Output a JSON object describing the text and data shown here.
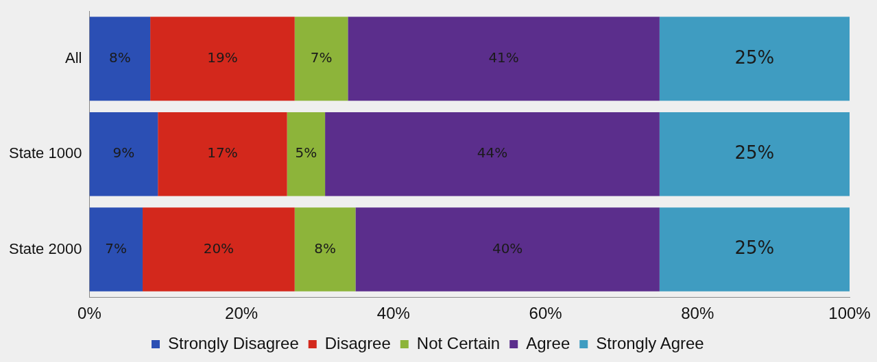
{
  "chart_data": {
    "type": "bar",
    "orientation": "horizontal",
    "stacked": true,
    "categories": [
      "All",
      "State 1000",
      "State 2000"
    ],
    "series": [
      {
        "name": "Strongly Disagree",
        "color": "#2b4fb4",
        "values": [
          8,
          9,
          7
        ],
        "value_labels": [
          "8%",
          "9%",
          "7%"
        ]
      },
      {
        "name": "Disagree",
        "color": "#d3281c",
        "values": [
          19,
          17,
          20
        ],
        "value_labels": [
          "19%",
          "17%",
          "20%"
        ]
      },
      {
        "name": "Not Certain",
        "color": "#8db43a",
        "values": [
          7,
          5,
          8
        ],
        "value_labels": [
          "7%",
          "5%",
          "8%"
        ]
      },
      {
        "name": "Agree",
        "color": "#5b2e8c",
        "values": [
          41,
          44,
          40
        ],
        "value_labels": [
          "41%",
          "44%",
          "40%"
        ]
      },
      {
        "name": "Strongly Agree",
        "color": "#3f9cc1",
        "values": [
          25,
          25,
          25
        ],
        "value_labels": [
          "25%",
          "25%",
          "25%"
        ]
      }
    ],
    "xlim": [
      0,
      100
    ],
    "xticks": [
      {
        "value": 0,
        "label": "0%"
      },
      {
        "value": 20,
        "label": "20%"
      },
      {
        "value": 40,
        "label": "40%"
      },
      {
        "value": 60,
        "label": "60%"
      },
      {
        "value": 80,
        "label": "80%"
      },
      {
        "value": 100,
        "label": "100%"
      }
    ],
    "legend": "bottom"
  }
}
